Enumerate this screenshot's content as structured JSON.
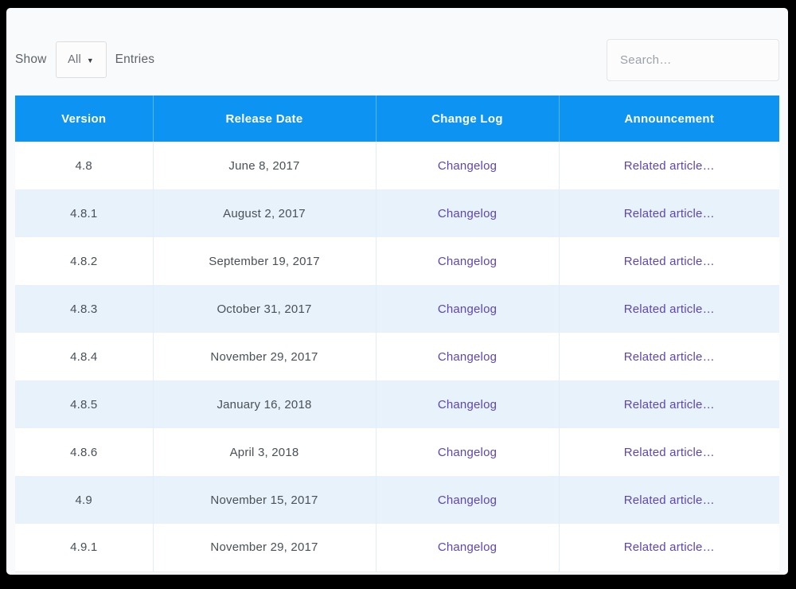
{
  "toolbar": {
    "show_label": "Show",
    "entries_label": "Entries",
    "length_select": {
      "value": "All"
    },
    "search": {
      "placeholder": "Search…"
    }
  },
  "table": {
    "columns": [
      {
        "label": "Version"
      },
      {
        "label": "Release Date"
      },
      {
        "label": "Change Log"
      },
      {
        "label": "Announcement"
      }
    ],
    "rows": [
      {
        "version": "4.8",
        "release_date": "June 8, 2017",
        "change_log": "Changelog",
        "announcement": "Related article…"
      },
      {
        "version": "4.8.1",
        "release_date": "August 2, 2017",
        "change_log": "Changelog",
        "announcement": "Related article…"
      },
      {
        "version": "4.8.2",
        "release_date": "September 19, 2017",
        "change_log": "Changelog",
        "announcement": "Related article…"
      },
      {
        "version": "4.8.3",
        "release_date": "October 31, 2017",
        "change_log": "Changelog",
        "announcement": "Related article…"
      },
      {
        "version": "4.8.4",
        "release_date": "November 29, 2017",
        "change_log": "Changelog",
        "announcement": "Related article…"
      },
      {
        "version": "4.8.5",
        "release_date": "January 16, 2018",
        "change_log": "Changelog",
        "announcement": "Related article…"
      },
      {
        "version": "4.8.6",
        "release_date": "April 3, 2018",
        "change_log": "Changelog",
        "announcement": "Related article…"
      },
      {
        "version": "4.9",
        "release_date": "November 15, 2017",
        "change_log": "Changelog",
        "announcement": "Related article…"
      },
      {
        "version": "4.9.1",
        "release_date": "November 29, 2017",
        "change_log": "Changelog",
        "announcement": "Related article…"
      }
    ]
  },
  "colors": {
    "frame_bg": "#000000",
    "page_bg": "#f9fafb",
    "header_bg": "#0d94f2",
    "alt_row_bg": "#e7f2fb",
    "link": "#5e45b5"
  }
}
